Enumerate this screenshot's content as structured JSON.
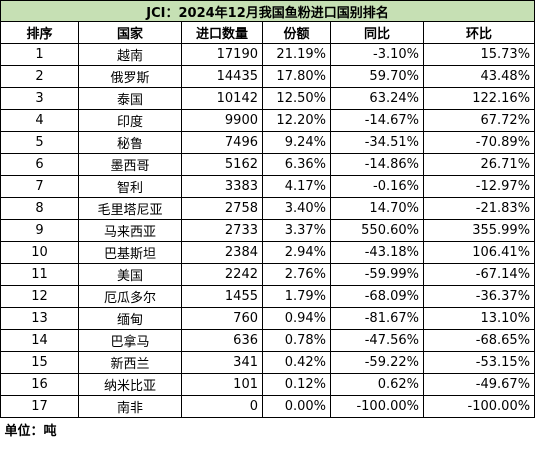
{
  "header": {
    "title": "JCI：2024年12月我国鱼粉进口国别排名"
  },
  "table": {
    "columns": [
      "排序",
      "国家",
      "进口数量",
      "份额",
      "同比",
      "环比"
    ],
    "rows": [
      [
        "1",
        "越南",
        "17190",
        "21.19%",
        "-3.10%",
        "15.73%"
      ],
      [
        "2",
        "俄罗斯",
        "14435",
        "17.80%",
        "59.70%",
        "43.48%"
      ],
      [
        "3",
        "泰国",
        "10142",
        "12.50%",
        "63.24%",
        "122.16%"
      ],
      [
        "4",
        "印度",
        "9900",
        "12.20%",
        "-14.67%",
        "67.72%"
      ],
      [
        "5",
        "秘鲁",
        "7496",
        "9.24%",
        "-34.51%",
        "-70.89%"
      ],
      [
        "6",
        "墨西哥",
        "5162",
        "6.36%",
        "-14.86%",
        "26.71%"
      ],
      [
        "7",
        "智利",
        "3383",
        "4.17%",
        "-0.16%",
        "-12.97%"
      ],
      [
        "8",
        "毛里塔尼亚",
        "2758",
        "3.40%",
        "14.70%",
        "-21.83%"
      ],
      [
        "9",
        "马来西亚",
        "2733",
        "3.37%",
        "550.60%",
        "355.99%"
      ],
      [
        "10",
        "巴基斯坦",
        "2384",
        "2.94%",
        "-43.18%",
        "106.41%"
      ],
      [
        "11",
        "美国",
        "2242",
        "2.76%",
        "-59.99%",
        "-67.14%"
      ],
      [
        "12",
        "厄瓜多尔",
        "1455",
        "1.79%",
        "-68.09%",
        "-36.37%"
      ],
      [
        "13",
        "缅甸",
        "760",
        "0.94%",
        "-81.67%",
        "13.10%"
      ],
      [
        "14",
        "巴拿马",
        "636",
        "0.78%",
        "-47.56%",
        "-68.65%"
      ],
      [
        "15",
        "新西兰",
        "341",
        "0.42%",
        "-59.22%",
        "-53.15%"
      ],
      [
        "16",
        "纳米比亚",
        "101",
        "0.12%",
        "0.62%",
        "-49.67%"
      ],
      [
        "17",
        "南非",
        "0",
        "0.00%",
        "-100.00%",
        "-100.00%"
      ]
    ]
  },
  "footer": {
    "unit": "单位：吨"
  }
}
